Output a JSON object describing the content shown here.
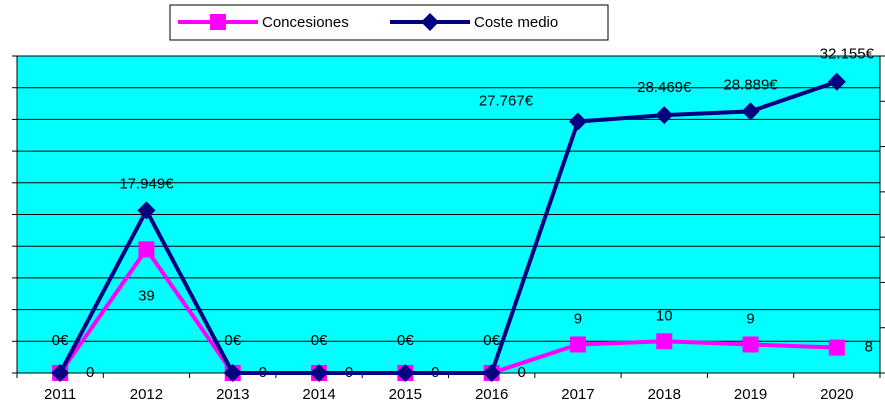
{
  "chart_data": {
    "type": "line",
    "categories": [
      "2011",
      "2012",
      "2013",
      "2014",
      "2015",
      "2016",
      "2017",
      "2018",
      "2019",
      "2020"
    ],
    "series": [
      {
        "name": "Concesiones",
        "color": "#ff00ff",
        "marker": "square",
        "values": [
          0,
          39,
          0,
          0,
          0,
          0,
          9,
          10,
          9,
          8
        ]
      },
      {
        "name": "Coste medio",
        "color": "#000080",
        "marker": "diamond",
        "axis": "y2",
        "values": [
          0,
          17949,
          0,
          0,
          0,
          0,
          27767,
          28469,
          28889,
          32155
        ],
        "value_labels": [
          "0€",
          "17.949€",
          "0€",
          "0€",
          "0€",
          "0€",
          "27.767€",
          "28.469€",
          "28.889€",
          "32.155€"
        ]
      }
    ],
    "ylim": [
      0,
      100
    ],
    "yticks": [
      0,
      10,
      20,
      30,
      40,
      50,
      60,
      70,
      80,
      90,
      100
    ],
    "y2lim": [
      0,
      35000
    ],
    "y2ticks": [
      0,
      5000,
      10000,
      15000,
      20000,
      25000,
      30000,
      35000
    ],
    "grid": true,
    "legend": "top",
    "background": "#00ffff"
  }
}
